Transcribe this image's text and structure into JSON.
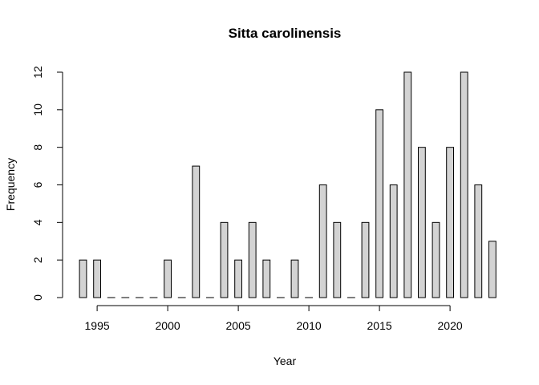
{
  "chart_data": {
    "type": "bar",
    "title": "Sitta carolinensis",
    "xlabel": "Year",
    "ylabel": "Frequency",
    "x": [
      1994,
      1995,
      1996,
      1997,
      1998,
      1999,
      2000,
      2001,
      2002,
      2003,
      2004,
      2005,
      2006,
      2007,
      2008,
      2009,
      2010,
      2011,
      2012,
      2013,
      2014,
      2015,
      2016,
      2017,
      2018,
      2019,
      2020,
      2021,
      2022,
      2023
    ],
    "values": [
      2,
      2,
      0,
      0,
      0,
      0,
      2,
      0,
      7,
      0,
      4,
      2,
      4,
      2,
      0,
      2,
      0,
      6,
      4,
      0,
      4,
      10,
      6,
      12,
      8,
      4,
      8,
      12,
      6,
      3
    ],
    "xticks": [
      "1995",
      "2000",
      "2005",
      "2010",
      "2015",
      "2020"
    ],
    "yticks": [
      "0",
      "2",
      "4",
      "6",
      "8",
      "10",
      "12"
    ],
    "ylim": [
      0,
      12
    ],
    "bar_color": "#d3d3d3",
    "grid": false,
    "legend": "none"
  }
}
